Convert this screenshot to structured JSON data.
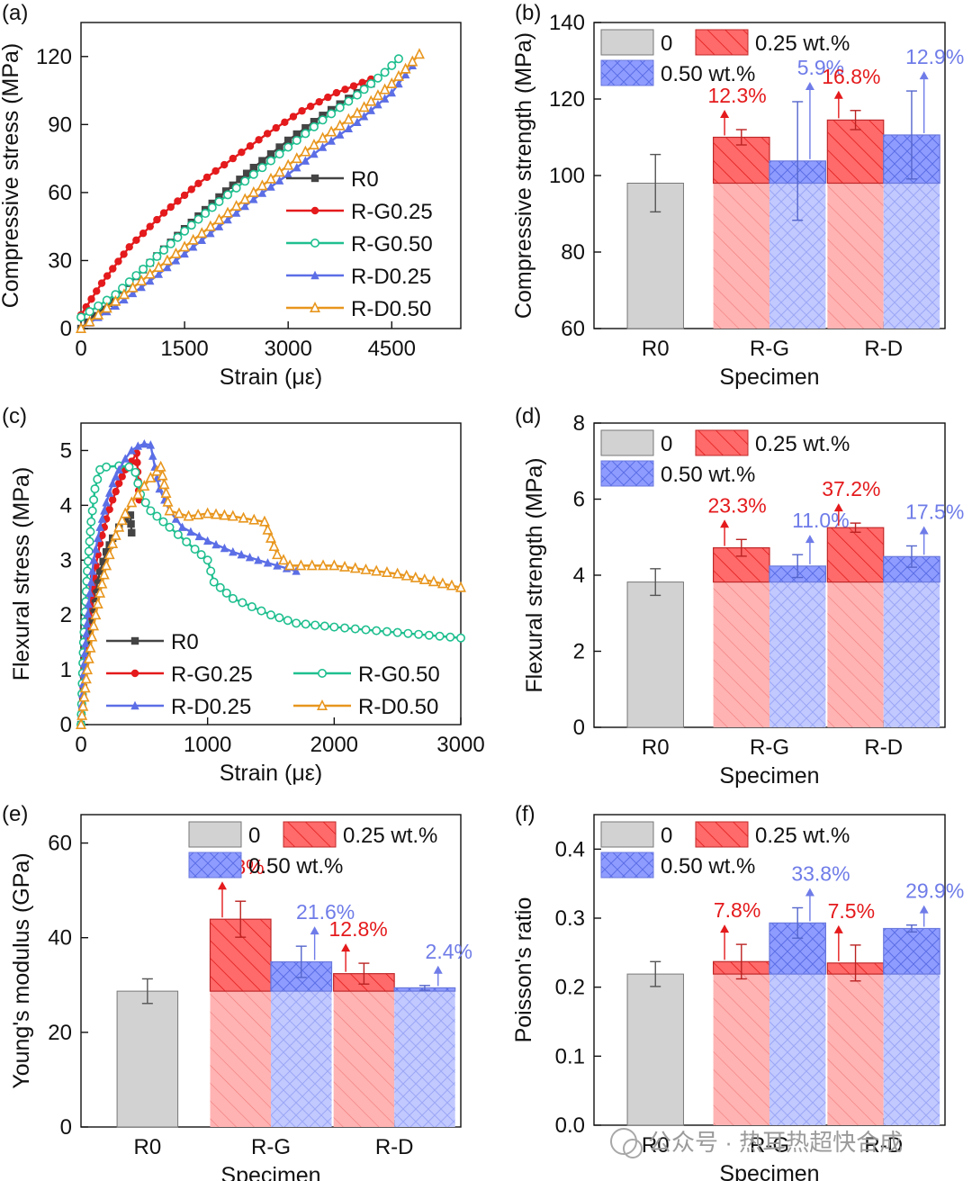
{
  "colors": {
    "axis": "#111111",
    "R0": "#444444",
    "G25": "#e41a1c",
    "G50": "#1fbf8f",
    "D25": "#5b6ee6",
    "D50": "#e8961e",
    "bar0": "#d2d2d2",
    "bar025": "#ff5d5d",
    "bar050": "#8f9cff"
  },
  "watermark": "公众号 · 热耳热超快合成",
  "chart_data": [
    {
      "panel": "(a)",
      "type": "line",
      "xlabel": "Strain (με)",
      "ylabel": "Compressive stress (MPa)",
      "xlim": [
        0,
        5500
      ],
      "ylim": [
        0,
        135
      ],
      "xticks": [
        0,
        1500,
        3000,
        4500
      ],
      "yticks": [
        0,
        30,
        60,
        90,
        120
      ],
      "legend_position": "center-right",
      "series": [
        {
          "name": "R0",
          "color": "R0",
          "marker": "square",
          "x": [
            0,
            500,
            1000,
            1500,
            2000,
            2500,
            3000,
            3500,
            4000,
            4200
          ],
          "y": [
            0,
            14,
            29,
            44,
            58,
            71,
            83,
            94,
            104,
            108
          ]
        },
        {
          "name": "R-G0.25",
          "color": "G25",
          "marker": "circle",
          "x": [
            0,
            300,
            700,
            1200,
            1700,
            2200,
            2700,
            3200,
            3700,
            4200
          ],
          "y": [
            6,
            20,
            36,
            51,
            64,
            75,
            86,
            96,
            104,
            110
          ]
        },
        {
          "name": "R-G0.50",
          "color": "G50",
          "marker": "circle-open",
          "x": [
            0,
            500,
            1000,
            1500,
            2000,
            2500,
            3000,
            3500,
            4000,
            4400,
            4600
          ],
          "y": [
            5,
            15,
            29,
            43,
            56,
            68,
            80,
            92,
            103,
            113,
            119
          ]
        },
        {
          "name": "R-D0.25",
          "color": "D25",
          "marker": "triangle",
          "x": [
            0,
            500,
            1000,
            1500,
            2000,
            2500,
            3000,
            3500,
            4000,
            4500,
            4800
          ],
          "y": [
            0,
            10,
            21,
            33,
            45,
            57,
            68,
            80,
            91,
            104,
            116
          ]
        },
        {
          "name": "R-D0.50",
          "color": "D50",
          "marker": "triangle-open",
          "x": [
            0,
            500,
            1000,
            1500,
            2000,
            2500,
            3000,
            3500,
            4000,
            4500,
            4900
          ],
          "y": [
            0,
            12,
            24,
            36,
            48,
            60,
            72,
            84,
            95,
            108,
            121
          ]
        }
      ]
    },
    {
      "panel": "(b)",
      "type": "bar",
      "xlabel": "Specimen",
      "ylabel": "Compressive strength (MPa)",
      "ylim": [
        60,
        140
      ],
      "yticks": [
        60,
        80,
        100,
        120,
        140
      ],
      "categories": [
        "R0",
        "R-G",
        "R-D"
      ],
      "legend": [
        "0",
        "0.25 wt.%",
        "0.50 wt.%"
      ],
      "baseline": 98,
      "bars": [
        {
          "category": "R0",
          "group": "0",
          "value": 98,
          "error": 7.5
        },
        {
          "category": "R-G",
          "group": "0.25 wt.%",
          "value": 110,
          "error": 2,
          "label": "12.3%"
        },
        {
          "category": "R-G",
          "group": "0.50 wt.%",
          "value": 103.8,
          "error": 15.5,
          "label": "5.9%"
        },
        {
          "category": "R-D",
          "group": "0.25 wt.%",
          "value": 114.5,
          "error": 2.5,
          "label": "16.8%"
        },
        {
          "category": "R-D",
          "group": "0.50 wt.%",
          "value": 110.6,
          "error": 11.5,
          "label": "12.9%"
        }
      ]
    },
    {
      "panel": "(c)",
      "type": "line",
      "xlabel": "Strain (με)",
      "ylabel": "Flexural stress (MPa)",
      "xlim": [
        0,
        3000
      ],
      "ylim": [
        0,
        5.5
      ],
      "xticks": [
        0,
        1000,
        2000,
        3000
      ],
      "yticks": [
        0,
        1,
        2,
        3,
        4,
        5
      ],
      "legend_position": "bottom-center",
      "series": [
        {
          "name": "R0",
          "color": "R0",
          "marker": "square",
          "x": [
            0,
            30,
            60,
            100,
            150,
            200,
            250,
            300,
            350,
            390,
            400
          ],
          "y": [
            0,
            1.0,
            1.7,
            2.3,
            2.8,
            3.15,
            3.4,
            3.6,
            3.75,
            3.82,
            3.5
          ]
        },
        {
          "name": "R-G0.25",
          "color": "G25",
          "marker": "circle",
          "x": [
            0,
            30,
            60,
            100,
            150,
            200,
            250,
            300,
            350,
            400,
            440,
            460
          ],
          "y": [
            0,
            1.2,
            2.0,
            2.7,
            3.3,
            3.75,
            4.1,
            4.4,
            4.65,
            4.8,
            4.95,
            4.1
          ]
        },
        {
          "name": "R-G0.50",
          "color": "G50",
          "marker": "circle-open",
          "x": [
            0,
            20,
            50,
            80,
            110,
            150,
            200,
            300,
            380,
            430,
            470,
            550,
            700,
            900,
            1000,
            1050,
            1200,
            1500,
            1700,
            2000,
            2500,
            3000
          ],
          "y": [
            0,
            1.5,
            2.8,
            3.7,
            4.3,
            4.65,
            4.7,
            4.72,
            4.7,
            4.6,
            4.2,
            3.9,
            3.6,
            3.2,
            3.0,
            2.6,
            2.3,
            2.0,
            1.85,
            1.78,
            1.68,
            1.58
          ]
        },
        {
          "name": "R-D0.25",
          "color": "D25",
          "marker": "triangle",
          "x": [
            0,
            30,
            60,
            100,
            150,
            200,
            250,
            300,
            350,
            400,
            450,
            500,
            550,
            600,
            620,
            700,
            800,
            1000,
            1200,
            1400,
            1700
          ],
          "y": [
            0,
            1.3,
            2.2,
            3.0,
            3.6,
            4.05,
            4.4,
            4.65,
            4.85,
            5.0,
            5.08,
            5.12,
            5.1,
            4.5,
            4.3,
            3.9,
            3.6,
            3.35,
            3.15,
            3.0,
            2.8
          ]
        },
        {
          "name": "R-D0.50",
          "color": "D50",
          "marker": "triangle-open",
          "x": [
            0,
            50,
            100,
            150,
            200,
            250,
            300,
            350,
            400,
            450,
            500,
            550,
            600,
            630,
            700,
            850,
            1000,
            1200,
            1450,
            1550,
            1650,
            2000,
            2500,
            3000
          ],
          "y": [
            0,
            1.0,
            1.8,
            2.4,
            2.9,
            3.3,
            3.6,
            3.85,
            4.05,
            4.2,
            4.35,
            4.5,
            4.62,
            4.7,
            3.9,
            3.8,
            3.85,
            3.8,
            3.7,
            3.1,
            2.9,
            2.9,
            2.75,
            2.5
          ]
        }
      ]
    },
    {
      "panel": "(d)",
      "type": "bar",
      "xlabel": "Specimen",
      "ylabel": "Flexural strength (MPa)",
      "ylim": [
        0,
        8
      ],
      "yticks": [
        0,
        2,
        4,
        6,
        8
      ],
      "categories": [
        "R0",
        "R-G",
        "R-D"
      ],
      "legend": [
        "0",
        "0.25 wt.%",
        "0.50 wt.%"
      ],
      "baseline": 3.82,
      "bars": [
        {
          "category": "R0",
          "group": "0",
          "value": 3.82,
          "error": 0.35
        },
        {
          "category": "R-G",
          "group": "0.25 wt.%",
          "value": 4.72,
          "error": 0.22,
          "label": "23.3%"
        },
        {
          "category": "R-G",
          "group": "0.50 wt.%",
          "value": 4.24,
          "error": 0.3,
          "label": "11.0%"
        },
        {
          "category": "R-D",
          "group": "0.25 wt.%",
          "value": 5.25,
          "error": 0.12,
          "label": "37.2%"
        },
        {
          "category": "R-D",
          "group": "0.50 wt.%",
          "value": 4.49,
          "error": 0.28,
          "label": "17.5%"
        }
      ]
    },
    {
      "panel": "(e)",
      "type": "bar",
      "xlabel": "Specimen",
      "ylabel": "Young's modulus (GPa)",
      "ylim": [
        0,
        66
      ],
      "yticks": [
        0,
        20,
        40,
        60
      ],
      "categories": [
        "R0",
        "R-G",
        "R-D"
      ],
      "legend": [
        "0",
        "0.25 wt.%",
        "0.50 wt.%"
      ],
      "baseline": 28.7,
      "bars": [
        {
          "category": "R0",
          "group": "0",
          "value": 28.7,
          "error": 2.6
        },
        {
          "category": "R-G",
          "group": "0.25 wt.%",
          "value": 43.9,
          "error": 3.8,
          "label": "52.8%"
        },
        {
          "category": "R-G",
          "group": "0.50 wt.%",
          "value": 34.9,
          "error": 3.3,
          "label": "21.6%"
        },
        {
          "category": "R-D",
          "group": "0.25 wt.%",
          "value": 32.4,
          "error": 2.2,
          "label": "12.8%"
        },
        {
          "category": "R-D",
          "group": "0.50 wt.%",
          "value": 29.4,
          "error": 0.5,
          "label": "2.4%"
        }
      ]
    },
    {
      "panel": "(f)",
      "type": "bar",
      "xlabel": "Specimen",
      "ylabel": "Poisson's ratio",
      "ylim": [
        0,
        0.45
      ],
      "yticks": [
        0.0,
        0.1,
        0.2,
        0.3,
        0.4
      ],
      "categories": [
        "R0",
        "R-G",
        "R-D"
      ],
      "legend": [
        "0",
        "0.25 wt.%",
        "0.50 wt.%"
      ],
      "baseline": 0.219,
      "bars": [
        {
          "category": "R0",
          "group": "0",
          "value": 0.219,
          "error": 0.018
        },
        {
          "category": "R-G",
          "group": "0.25 wt.%",
          "value": 0.237,
          "error": 0.025,
          "label": "7.8%"
        },
        {
          "category": "R-G",
          "group": "0.50 wt.%",
          "value": 0.293,
          "error": 0.022,
          "label": "33.8%"
        },
        {
          "category": "R-D",
          "group": "0.25 wt.%",
          "value": 0.235,
          "error": 0.026,
          "label": "7.5%"
        },
        {
          "category": "R-D",
          "group": "0.50 wt.%",
          "value": 0.285,
          "error": 0.005,
          "label": "29.9%"
        }
      ]
    }
  ]
}
